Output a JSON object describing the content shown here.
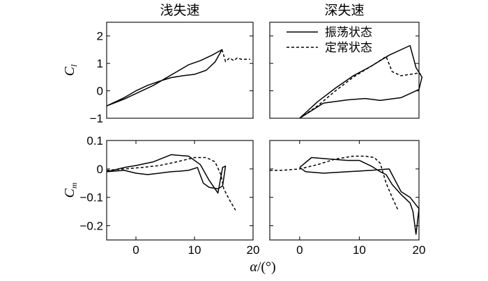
{
  "chart_data": [
    {
      "type": "line",
      "id": "cl-shallow",
      "title": "浅失速",
      "ylabel": "C",
      "ylabel_sub": "l",
      "xlim": [
        -5,
        20
      ],
      "ylim": [
        -1,
        2.5
      ],
      "xticks": [],
      "yticks": [
        -1,
        0,
        1,
        2
      ],
      "ytick_labels": [
        "−1",
        "0",
        "1",
        "2"
      ],
      "series": [
        {
          "style": "solid",
          "x": [
            -5,
            -2,
            1,
            3,
            5,
            7,
            9,
            11,
            13,
            14.7,
            13.5,
            12,
            10,
            8,
            6,
            4,
            2,
            0,
            -2,
            -5
          ],
          "y": [
            -0.55,
            -0.3,
            0.0,
            0.2,
            0.45,
            0.7,
            0.95,
            1.1,
            1.3,
            1.5,
            1.05,
            0.75,
            0.6,
            0.55,
            0.48,
            0.35,
            0.2,
            0.0,
            -0.25,
            -0.55
          ]
        },
        {
          "style": "dashed",
          "x": [
            14.7,
            15.3,
            16,
            16.7,
            17.3,
            18,
            19.5
          ],
          "y": [
            1.5,
            1.07,
            1.2,
            1.1,
            1.2,
            1.15,
            1.15
          ]
        }
      ]
    },
    {
      "type": "line",
      "id": "cl-deep",
      "title": "深失速",
      "xlim": [
        -5,
        20
      ],
      "ylim": [
        -1,
        2.5
      ],
      "xticks": [],
      "yticks": [
        -1,
        0,
        1,
        2
      ],
      "ytick_labels": [],
      "legend": {
        "position": "top-right",
        "entries": [
          {
            "label": "振荡状态",
            "style": "solid"
          },
          {
            "label": "定常状态",
            "style": "dashed"
          }
        ]
      },
      "series": [
        {
          "style": "solid",
          "x": [
            0,
            3,
            6,
            9,
            12,
            15,
            18.5,
            19.5,
            20.5,
            20,
            17,
            13.5,
            11,
            8,
            4,
            0
          ],
          "y": [
            -1,
            -0.4,
            0.1,
            0.55,
            0.9,
            1.3,
            1.65,
            0.85,
            0.5,
            0.05,
            -0.25,
            -0.35,
            -0.28,
            -0.33,
            -0.45,
            -1
          ]
        },
        {
          "style": "dashed",
          "x": [
            0,
            3,
            6,
            9,
            12,
            14.5,
            15.5,
            17,
            18.5,
            20,
            20.3
          ],
          "y": [
            -1,
            -0.55,
            0.0,
            0.5,
            0.9,
            1.25,
            0.7,
            0.55,
            0.6,
            0.65,
            0.6
          ]
        }
      ]
    },
    {
      "type": "line",
      "id": "cm-shallow",
      "ylabel": "C",
      "ylabel_sub": "m",
      "xlim": [
        -5,
        20
      ],
      "ylim": [
        -0.25,
        0.1
      ],
      "xticks": [
        0,
        10,
        20
      ],
      "xtick_labels": [
        "0",
        "10",
        "20"
      ],
      "yticks": [
        -0.2,
        -0.1,
        0,
        0.1
      ],
      "ytick_labels": [
        "−0.2",
        "−0.1",
        "0",
        "0.1"
      ],
      "series": [
        {
          "style": "solid",
          "x": [
            -5,
            -2,
            0,
            2,
            4,
            6,
            7.5,
            9,
            10.5,
            11.5,
            12.5,
            14,
            14.8,
            15.3,
            14.8,
            14,
            12.5,
            11,
            9,
            6,
            3,
            0,
            -2,
            -5
          ],
          "y": [
            -0.01,
            -0.005,
            -0.015,
            -0.02,
            -0.015,
            -0.01,
            -0.008,
            -0.005,
            0.005,
            -0.05,
            -0.065,
            -0.07,
            -0.06,
            0.01,
            0.005,
            -0.085,
            -0.04,
            0.015,
            0.045,
            0.05,
            0.025,
            0.012,
            0.005,
            -0.01
          ]
        },
        {
          "style": "dashed",
          "x": [
            -5,
            -2,
            1,
            4,
            7,
            10,
            12,
            13.5,
            14.5,
            15,
            16,
            17
          ],
          "y": [
            -0.005,
            0.0,
            0.005,
            0.012,
            0.025,
            0.04,
            0.04,
            0.025,
            -0.02,
            -0.07,
            -0.11,
            -0.145
          ]
        }
      ]
    },
    {
      "type": "line",
      "id": "cm-deep",
      "xlim": [
        -5,
        20
      ],
      "ylim": [
        -0.25,
        0.1
      ],
      "xticks": [
        0,
        10,
        20
      ],
      "xtick_labels": [
        "0",
        "10",
        "20"
      ],
      "yticks": [
        -0.2,
        -0.1,
        0,
        0.1
      ],
      "ytick_labels": [],
      "series": [
        {
          "style": "solid",
          "x": [
            0,
            2,
            5,
            8,
            10,
            12,
            13.5,
            14.5,
            15.5,
            17,
            18.5,
            19,
            19.5,
            20,
            18.5,
            17,
            15,
            12,
            8,
            4,
            1,
            0
          ],
          "y": [
            0.005,
            0.04,
            0.035,
            0.03,
            0.03,
            0.01,
            -0.01,
            -0.02,
            -0.055,
            -0.09,
            -0.12,
            -0.15,
            -0.23,
            -0.14,
            -0.1,
            -0.08,
            0.0,
            -0.005,
            -0.01,
            -0.015,
            -0.01,
            0.005
          ]
        },
        {
          "style": "dashed",
          "x": [
            -5,
            -3,
            0,
            3,
            6,
            9,
            11,
            12.5,
            13.5,
            14.5,
            15.5,
            16.5
          ],
          "y": [
            -0.005,
            -0.005,
            0.0,
            0.015,
            0.035,
            0.045,
            0.045,
            0.04,
            0.02,
            -0.05,
            -0.1,
            -0.145
          ]
        }
      ]
    }
  ],
  "axis": {
    "xlabel_symbol": "α",
    "xlabel_unit": "/(°)"
  }
}
